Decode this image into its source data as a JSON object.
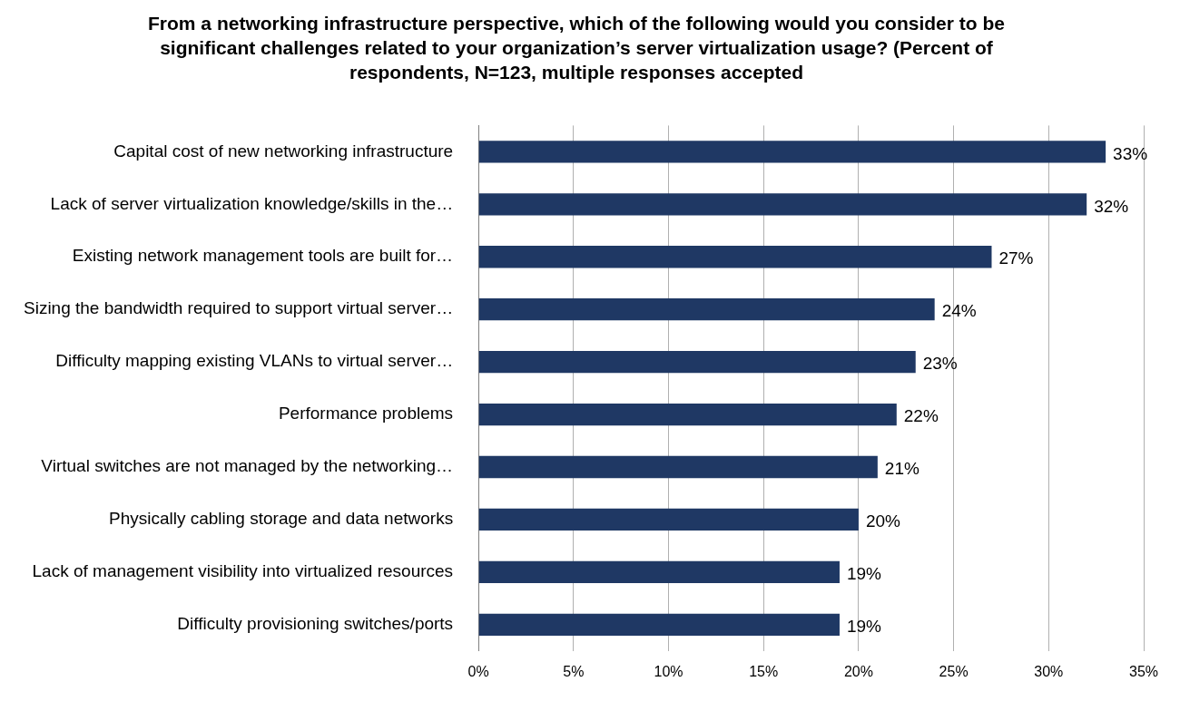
{
  "chart_data": {
    "type": "bar",
    "orientation": "horizontal",
    "title": "From a networking infrastructure perspective, which of the following would you consider to be significant challenges related to your organization’s server virtualization usage? (Percent of respondents, N=123, multiple responses accepted",
    "categories": [
      "Capital cost of new networking infrastructure",
      "Lack of server virtualization knowledge/skills in the…",
      "Existing network management tools are built for…",
      "Sizing the bandwidth required to support virtual server…",
      "Difficulty mapping existing VLANs to virtual server…",
      "Performance problems",
      "Virtual switches are not managed by the networking…",
      "Physically cabling storage and data networks",
      "Lack of management visibility into virtualized resources",
      "Difficulty provisioning switches/ports"
    ],
    "values": [
      33,
      32,
      27,
      24,
      23,
      22,
      21,
      20,
      19,
      19
    ],
    "value_labels": [
      "33%",
      "32%",
      "27%",
      "24%",
      "23%",
      "22%",
      "21%",
      "20%",
      "19%",
      "19%"
    ],
    "color": "#1f3864",
    "xlim": [
      0,
      35
    ],
    "xticks": [
      {
        "value": 0,
        "label": "0%"
      },
      {
        "value": 5,
        "label": "5%"
      },
      {
        "value": 10,
        "label": "10%"
      },
      {
        "value": 15,
        "label": "15%"
      },
      {
        "value": 20,
        "label": "20%"
      },
      {
        "value": 25,
        "label": "25%"
      },
      {
        "value": 30,
        "label": "30%"
      },
      {
        "value": 35,
        "label": "35%"
      }
    ],
    "grid": "x",
    "legend": false
  }
}
